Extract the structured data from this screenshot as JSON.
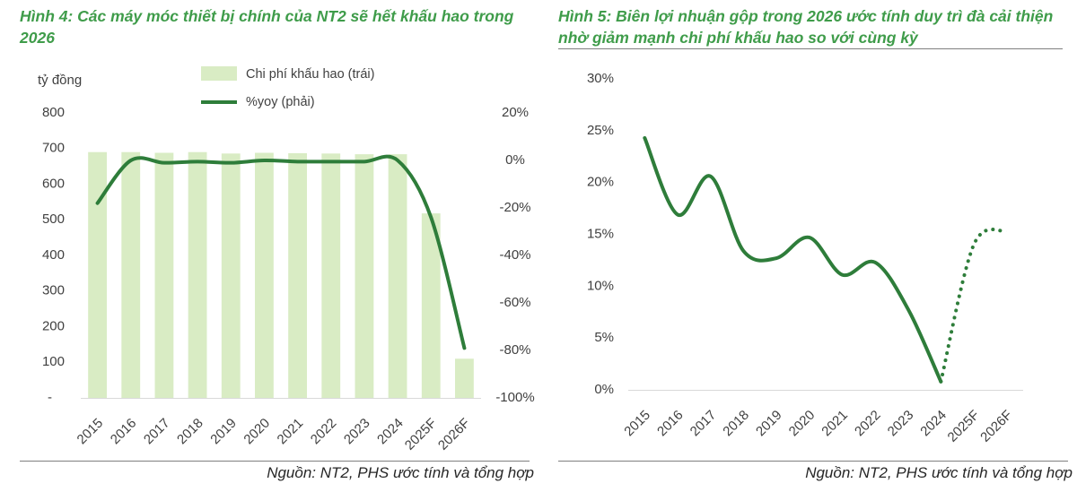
{
  "left_figure": {
    "title": "Hình 4: Các máy móc thiết bị chính của NT2 sẽ hết khấu hao trong 2026",
    "source": "Nguồn: NT2, PHS ước tính và tổng hợp"
  },
  "right_figure": {
    "title": "Hình 5: Biên lợi nhuận gộp trong 2026 ước tính duy trì đà cải thiện nhờ giảm mạnh chi phí khấu hao so với cùng kỳ",
    "source": "Nguồn: NT2, PHS ước tính và tổng hợp"
  },
  "colors": {
    "title": "#3f9c4a",
    "bar": "#d9ecc4",
    "line": "#2e7d3a",
    "axis": "#404040"
  },
  "chart_data": [
    {
      "type": "bar+line",
      "categories": [
        "2015",
        "2016",
        "2017",
        "2018",
        "2019",
        "2020",
        "2021",
        "2022",
        "2023",
        "2024",
        "2025F",
        "2026F"
      ],
      "unit_label": "tỷ đồng",
      "left_axis": {
        "ylim": [
          0,
          800
        ],
        "ticks": [
          0,
          100,
          200,
          300,
          400,
          500,
          600,
          700,
          800
        ],
        "tick_labels": [
          "-",
          "100",
          "200",
          "300",
          "400",
          "500",
          "600",
          "700",
          "800"
        ]
      },
      "right_axis": {
        "ylim": [
          -100,
          20
        ],
        "ticks": [
          -100,
          -80,
          -60,
          -40,
          -20,
          0,
          20
        ],
        "tick_labels": [
          "-100%",
          "-80%",
          "-60%",
          "-40%",
          "-20%",
          "0%",
          "20%"
        ]
      },
      "legend": [
        "Chi phí khấu hao (trái)",
        "%yoy (phải)"
      ],
      "series": [
        {
          "name": "Chi phí khấu hao (trái)",
          "type": "bar",
          "axis": "left",
          "values": [
            690,
            690,
            688,
            690,
            686,
            688,
            687,
            686,
            684,
            684,
            518,
            110
          ]
        },
        {
          "name": "%yoy (phải)",
          "type": "line",
          "axis": "right",
          "values": [
            -18,
            0,
            -1,
            -0.5,
            -1,
            0,
            -0.5,
            -0.5,
            -0.5,
            0,
            -24,
            -79
          ]
        }
      ]
    },
    {
      "type": "line",
      "categories": [
        "2015",
        "2016",
        "2017",
        "2018",
        "2019",
        "2020",
        "2021",
        "2022",
        "2023",
        "2024",
        "2025F",
        "2026F"
      ],
      "ylim": [
        0,
        30
      ],
      "ticks": [
        0,
        5,
        10,
        15,
        20,
        25,
        30
      ],
      "tick_labels": [
        "0%",
        "5%",
        "10%",
        "15%",
        "20%",
        "25%",
        "30%"
      ],
      "series": [
        {
          "values": [
            24.3,
            16.9,
            20.6,
            13.4,
            12.7,
            14.7,
            11.1,
            12.3,
            7.8,
            0.8,
            14.0,
            15.3
          ],
          "dotted_from_index": 9
        }
      ]
    }
  ]
}
